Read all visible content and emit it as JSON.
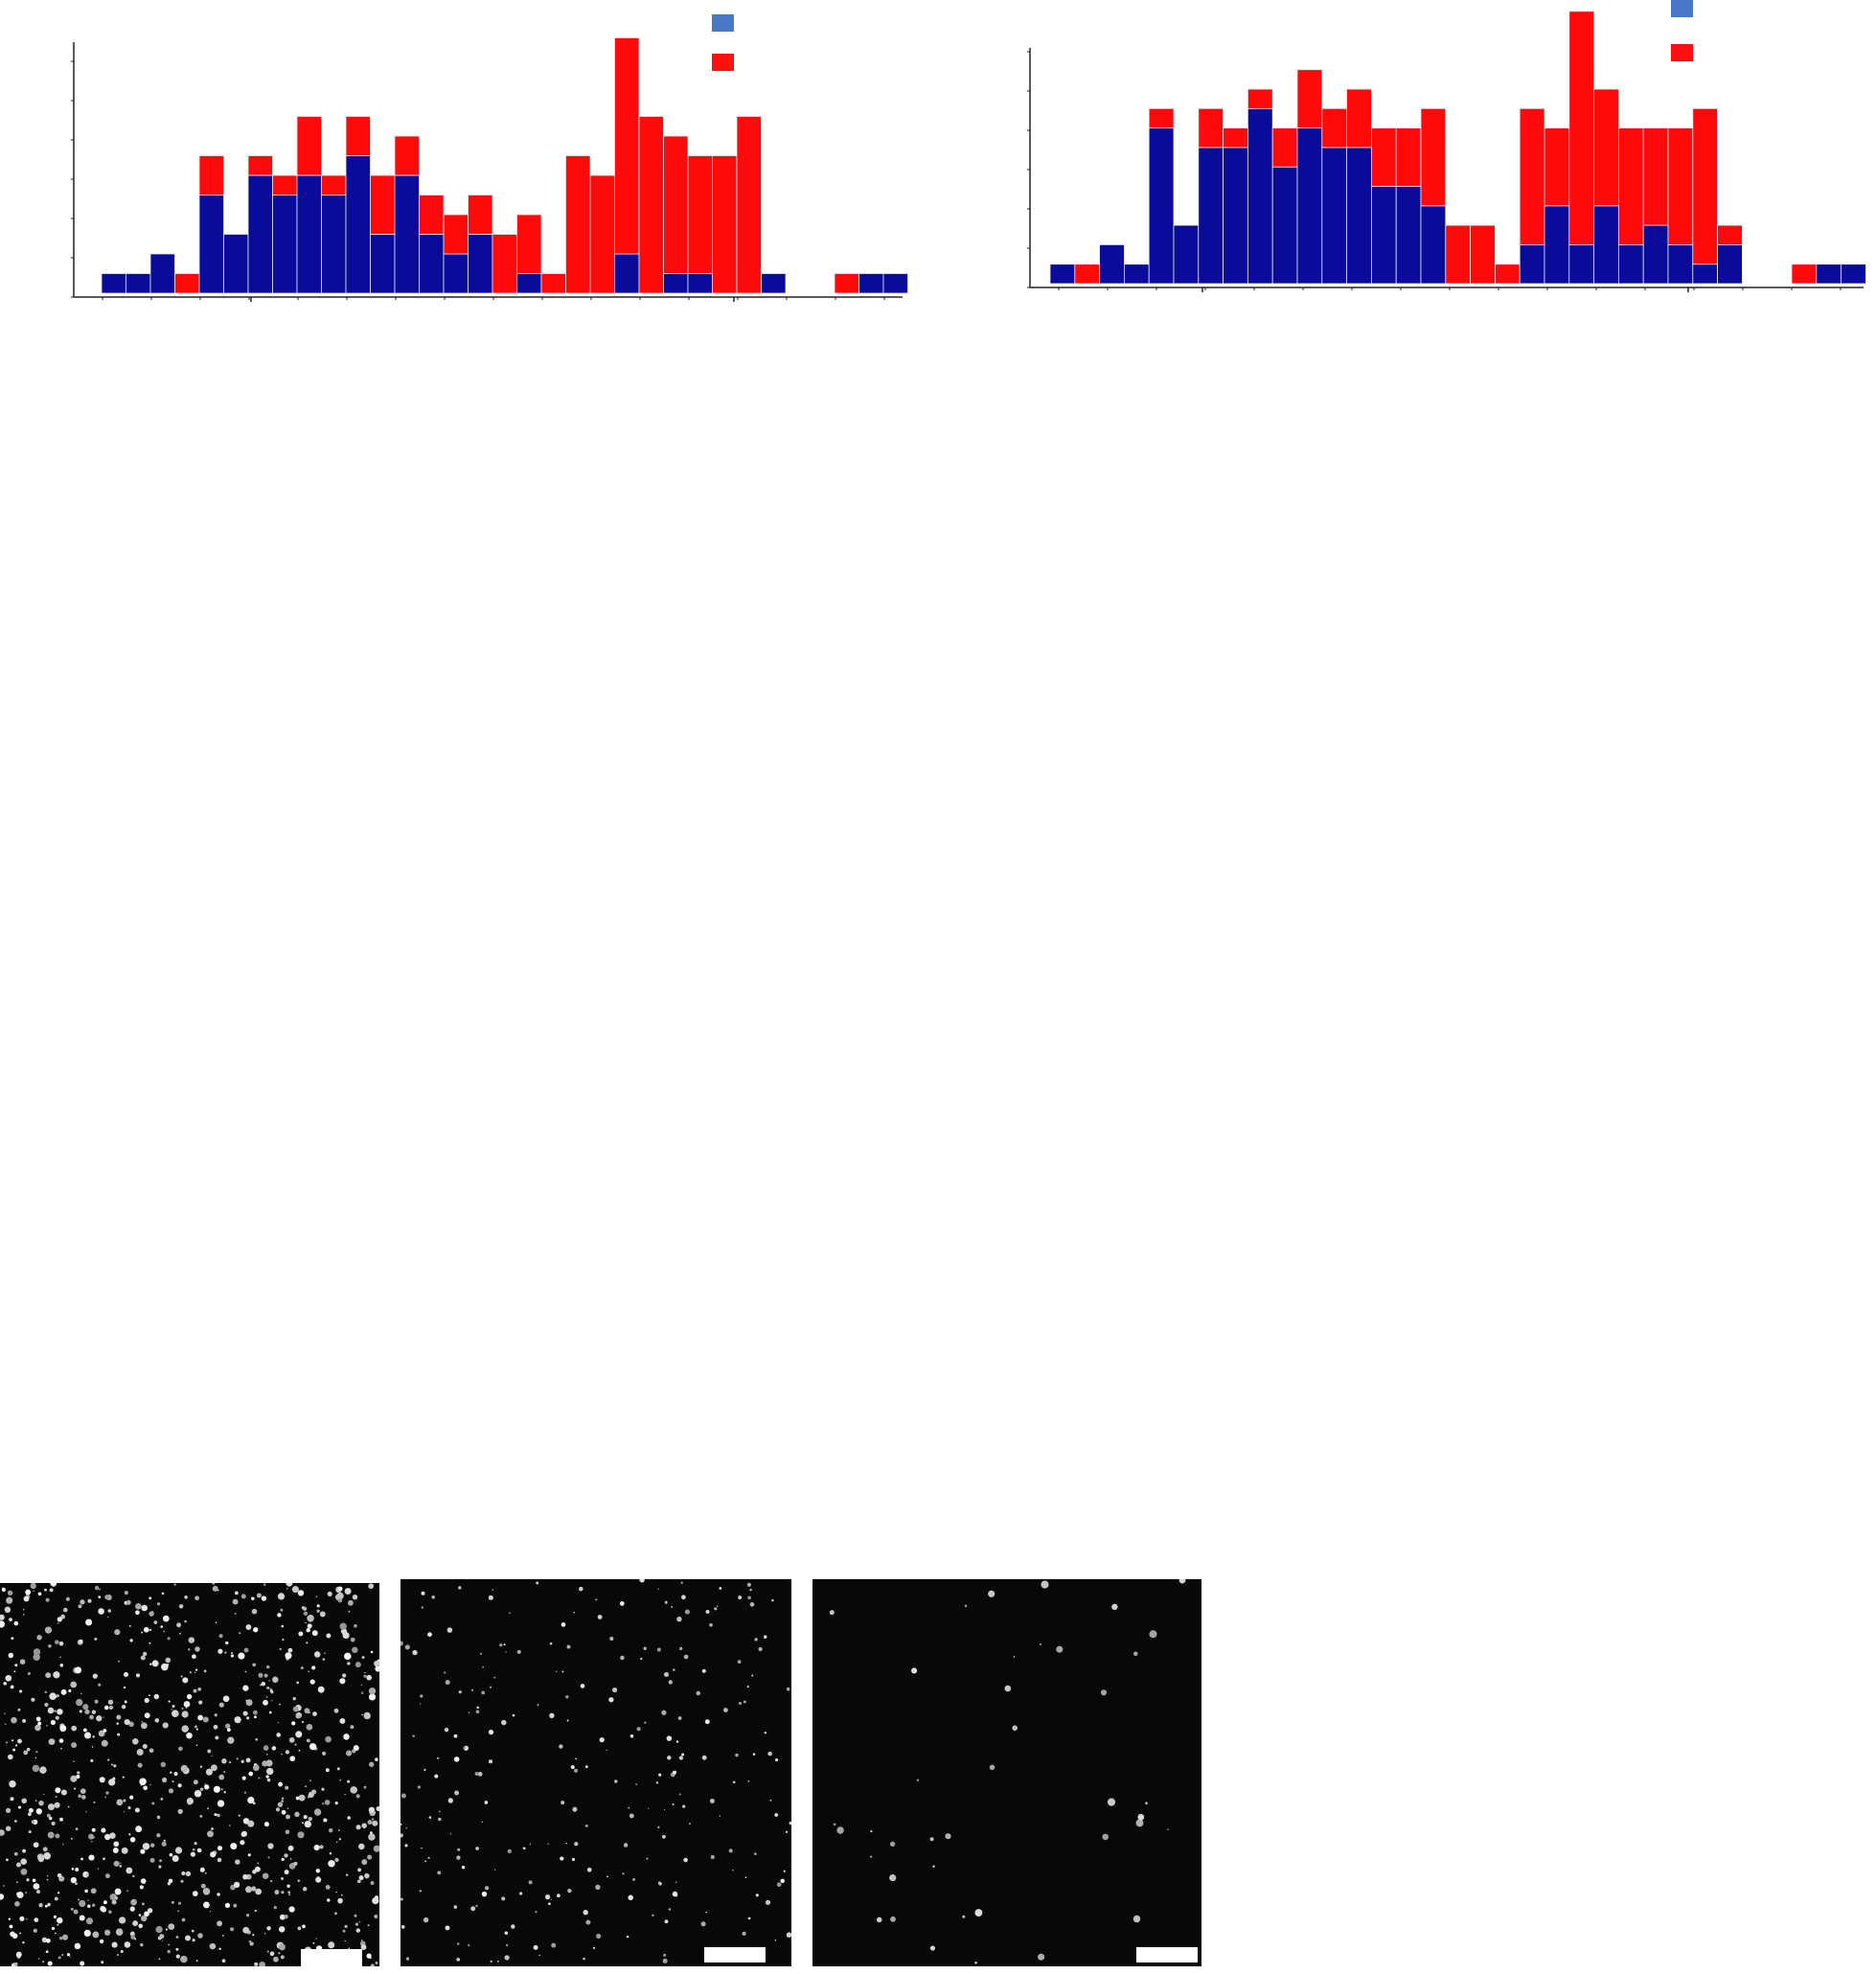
{
  "colors": {
    "blue_series": "#0b0b9a",
    "red_series": "#ff0a0a",
    "legend_blue": "#4a78c8",
    "legend_red": "#ff1010",
    "axis": "#222222",
    "bar_separator": "#e8e8ee",
    "micrograph_background": "#080808",
    "scale_bar": "#ffffff"
  },
  "chart_data": [
    {
      "type": "bar",
      "stacked": true,
      "title": "",
      "xlabel": "",
      "ylabel": "",
      "legend": "top-right",
      "grid": false,
      "ylim": [
        0,
        13
      ],
      "series": [
        {
          "color": "#0b0b9a",
          "values": [
            1,
            1,
            2,
            0,
            5,
            3,
            6,
            5,
            6,
            5,
            7,
            3,
            6,
            3,
            2,
            3,
            0,
            1,
            0,
            0,
            0,
            2,
            0,
            1,
            1,
            0,
            0,
            1,
            0,
            0,
            1,
            1
          ]
        },
        {
          "color": "#ff0a0a",
          "values": [
            0,
            0,
            0,
            1,
            2,
            0,
            1,
            1,
            3,
            1,
            2,
            3,
            2,
            2,
            2,
            2,
            3,
            3,
            1,
            7,
            6,
            11,
            9,
            7,
            6,
            7,
            9,
            0,
            0,
            1,
            0,
            0
          ]
        }
      ],
      "gaps_after_index": [
        28
      ]
    },
    {
      "type": "bar",
      "stacked": true,
      "title": "",
      "xlabel": "",
      "ylabel": "",
      "legend": "top-right",
      "grid": false,
      "ylim": [
        0,
        14
      ],
      "series": [
        {
          "color": "#0b0b9a",
          "values": [
            1,
            0,
            2,
            1,
            8,
            3,
            7,
            7,
            9,
            6,
            8,
            7,
            7,
            5,
            5,
            4,
            0,
            0,
            0,
            2,
            4,
            2,
            4,
            2,
            3,
            2,
            1,
            2,
            0,
            0,
            1,
            1
          ]
        },
        {
          "color": "#ff0a0a",
          "values": [
            0,
            1,
            0,
            0,
            1,
            0,
            2,
            1,
            1,
            2,
            3,
            2,
            3,
            3,
            3,
            5,
            3,
            3,
            1,
            7,
            4,
            12,
            6,
            6,
            5,
            6,
            8,
            1,
            0,
            1,
            0,
            0
          ]
        }
      ],
      "gaps_after_index": [
        28
      ]
    }
  ],
  "micrographs": [
    {
      "density": "high"
    },
    {
      "density": "medium"
    },
    {
      "density": "low"
    }
  ]
}
